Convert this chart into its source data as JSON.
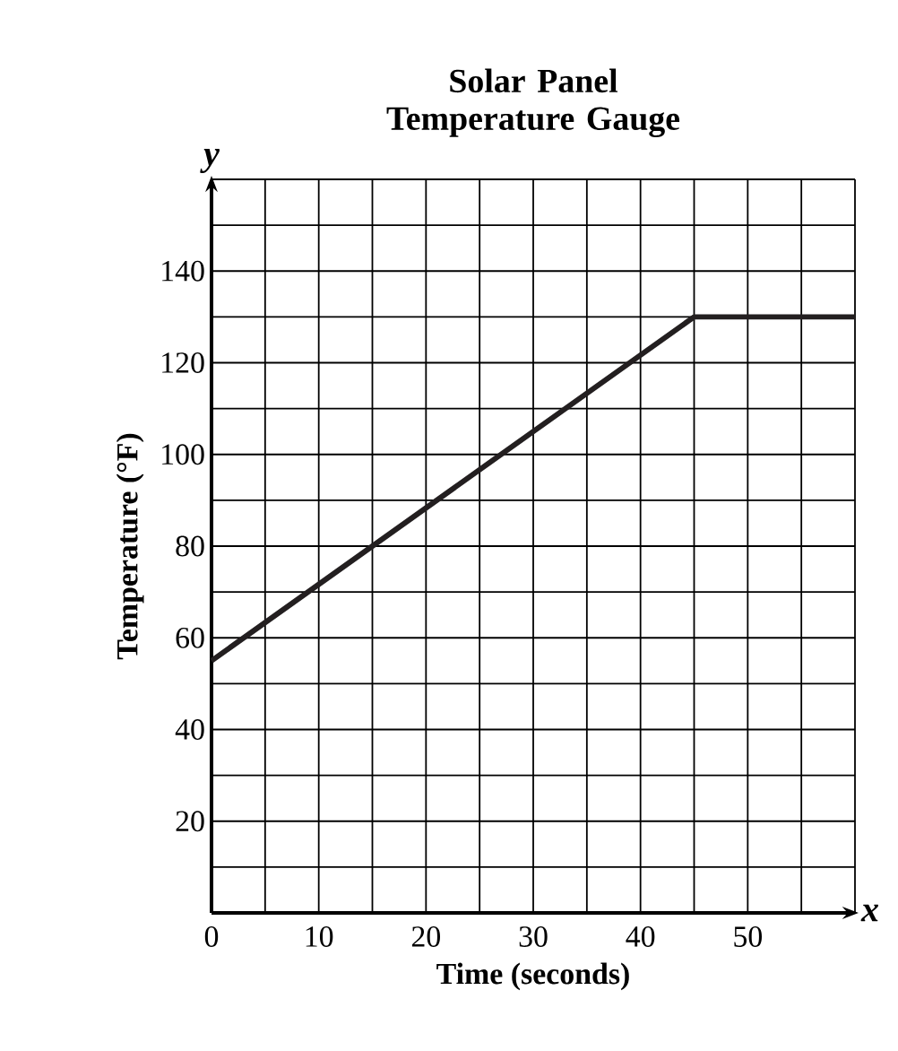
{
  "chart_data": {
    "type": "line",
    "title": "Solar Panel Temperature Gauge",
    "xlabel": "Time (seconds)",
    "ylabel": "Temperature (°F)",
    "annotations": [
      "y",
      "x"
    ],
    "x": [
      0,
      45,
      60
    ],
    "values": [
      55,
      130,
      130
    ],
    "color": "#231f20",
    "xlim": [
      0,
      60
    ],
    "ylim": [
      0,
      160
    ],
    "xticks": [
      0,
      {
        "value": 5,
        "label": null
      },
      10,
      {
        "value": 15,
        "label": null
      },
      20,
      {
        "value": 25,
        "label": null
      },
      30,
      {
        "value": 35,
        "label": null
      },
      40,
      {
        "value": 45,
        "label": null
      },
      50,
      {
        "value": 55,
        "label": null
      },
      {
        "value": 60,
        "label": null
      }
    ],
    "yticks": [
      {
        "value": 0,
        "label": null
      },
      {
        "value": 10,
        "label": null
      },
      20,
      {
        "value": 30,
        "label": null
      },
      40,
      {
        "value": 50,
        "label": null
      },
      60,
      {
        "value": 70,
        "label": null
      },
      80,
      {
        "value": 90,
        "label": null
      },
      100,
      {
        "value": 110,
        "label": null
      },
      120,
      {
        "value": 130,
        "label": null
      },
      140,
      {
        "value": 150,
        "label": null
      },
      {
        "value": 160,
        "label": null
      }
    ],
    "grid": true,
    "marker": "none",
    "line_style": "solid"
  }
}
